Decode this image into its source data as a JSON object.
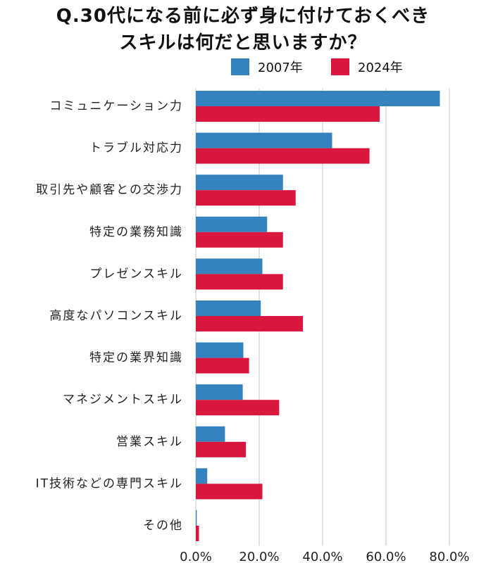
{
  "title": {
    "line1": "Q.30代になる前に必ず身に付けておくべき",
    "line2": "スキルは何だと思いますか？"
  },
  "legend": [
    {
      "label": "2007年",
      "color": "#3483bf"
    },
    {
      "label": "2024年",
      "color": "#d9163e"
    }
  ],
  "chart_data": {
    "type": "bar",
    "orientation": "horizontal",
    "categories": [
      "コミュニケーション力",
      "トラブル対応力",
      "取引先や顧客との交渉力",
      "特定の業務知識",
      "プレゼンスキル",
      "高度なパソコンスキル",
      "特定の業界知識",
      "マネジメントスキル",
      "営業スキル",
      "IT技術などの専門スキル",
      "その他"
    ],
    "series": [
      {
        "name": "2007年",
        "color": "#3483bf",
        "values": [
          77.0,
          43.0,
          27.5,
          22.5,
          21.0,
          20.5,
          15.0,
          14.8,
          9.2,
          3.6,
          0.3
        ]
      },
      {
        "name": "2024年",
        "color": "#d9163e",
        "values": [
          58.0,
          54.8,
          31.5,
          27.5,
          27.5,
          33.8,
          16.8,
          26.3,
          15.8,
          21.0,
          1.0
        ]
      }
    ],
    "xlim": [
      0,
      80
    ],
    "xticks": [
      0,
      20,
      40,
      60,
      80
    ],
    "xtick_labels": [
      "0.0%",
      "20.0%",
      "40.0%",
      "60.0%",
      "80.0%"
    ],
    "grid": "vertical",
    "legend_position": "top-right"
  }
}
